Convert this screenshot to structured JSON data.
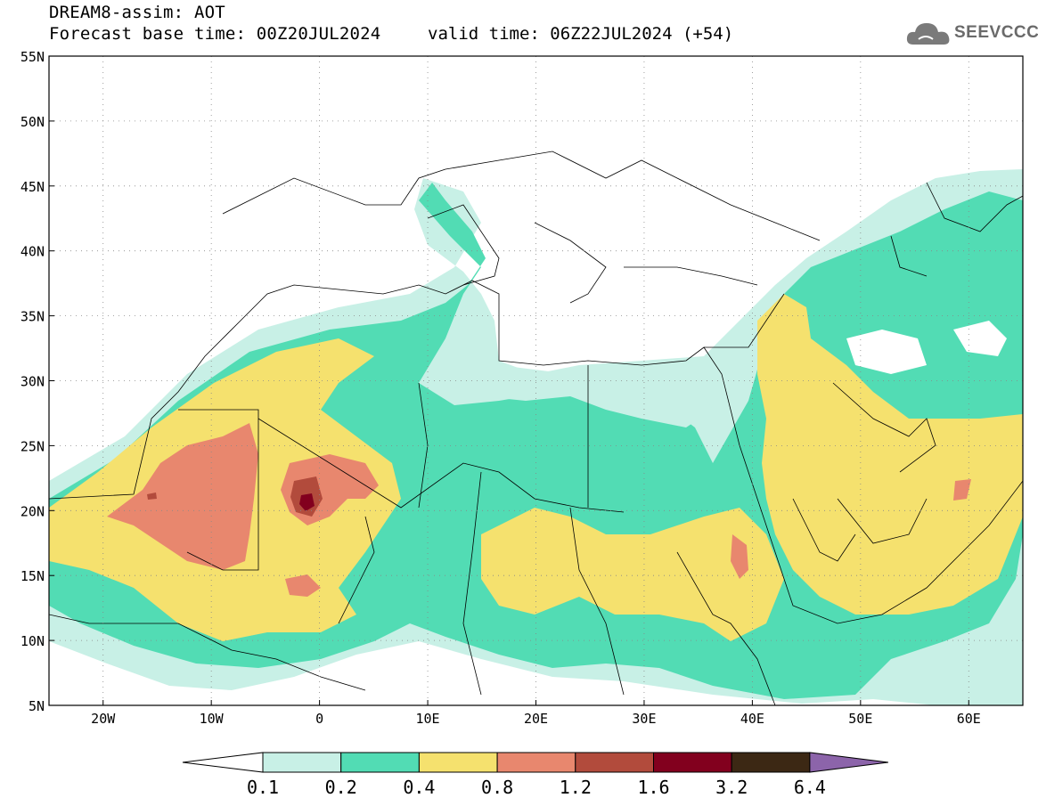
{
  "header": {
    "title": "DREAM8-assim: AOT",
    "base_time": "Forecast base time: 00Z20JUL2024",
    "valid_time": "valid time: 06Z22JUL2024 (+54)",
    "logo_text": "SEEVCCC"
  },
  "map": {
    "lat_ticks": [
      "55N",
      "50N",
      "45N",
      "40N",
      "35N",
      "30N",
      "25N",
      "20N",
      "15N",
      "10N",
      "5N"
    ],
    "lon_ticks": [
      "20W",
      "10W",
      "0",
      "10E",
      "20E",
      "30E",
      "40E",
      "50E",
      "60E"
    ],
    "lat_range": [
      5,
      55
    ],
    "lon_range": [
      -25,
      65
    ],
    "grid": "dotted"
  },
  "legend": {
    "levels": [
      "0.1",
      "0.2",
      "0.4",
      "0.8",
      "1.2",
      "1.6",
      "3.2",
      "6.4"
    ],
    "colors": [
      "#ffffff",
      "#c8f0e6",
      "#52dcb4",
      "#f5e16e",
      "#e8876e",
      "#b24b3c",
      "#82001e",
      "#3c2814",
      "#8c64aa"
    ]
  },
  "colors": {
    "c1": "#c8f0e6",
    "c2": "#52dcb4",
    "c3": "#f5e16e",
    "c4": "#e8876e",
    "c5": "#b24b3c",
    "c6": "#82001e"
  }
}
